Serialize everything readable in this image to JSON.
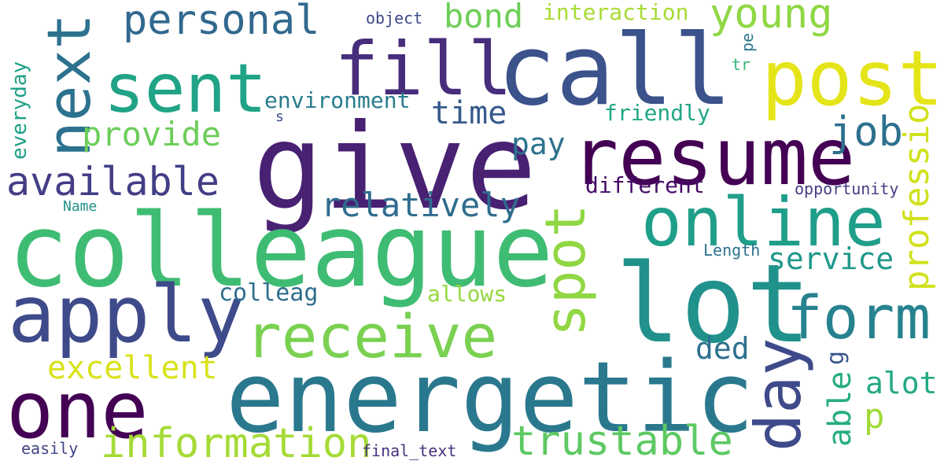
{
  "words": [
    {
      "text": "give",
      "color": "#482173"
    },
    {
      "text": "colleague",
      "color": "#3fbc73"
    },
    {
      "text": "call",
      "color": "#3b528b"
    },
    {
      "text": "energetic",
      "color": "#2a788e"
    },
    {
      "text": "lot",
      "color": "#21918c"
    },
    {
      "text": "resume",
      "color": "#440154"
    },
    {
      "text": "post",
      "color": "#e5e419"
    },
    {
      "text": "online",
      "color": "#1f9e89"
    },
    {
      "text": "apply",
      "color": "#3e4a89"
    },
    {
      "text": "fill",
      "color": "#472d7b"
    },
    {
      "text": "sent",
      "color": "#20a386"
    },
    {
      "text": "one",
      "color": "#440154"
    },
    {
      "text": "next",
      "color": "#2c728e"
    },
    {
      "text": "receive",
      "color": "#7ad151"
    },
    {
      "text": "form",
      "color": "#26828e"
    },
    {
      "text": "day",
      "color": "#3e4a89"
    },
    {
      "text": "spot",
      "color": "#90d743"
    },
    {
      "text": "information",
      "color": "#a5db36"
    },
    {
      "text": "trustable",
      "color": "#5ec962"
    },
    {
      "text": "personal",
      "color": "#31688e"
    },
    {
      "text": "young",
      "color": "#8fd744"
    },
    {
      "text": "available",
      "color": "#433e85"
    },
    {
      "text": "excellent",
      "color": "#d8e219"
    },
    {
      "text": "provide",
      "color": "#6ccd5a"
    },
    {
      "text": "relatively",
      "color": "#2f6c8e"
    },
    {
      "text": "professio",
      "color": "#d0e11c"
    },
    {
      "text": "job",
      "color": "#2d708e"
    },
    {
      "text": "pay",
      "color": "#2c728e"
    },
    {
      "text": "time",
      "color": "#375a8c"
    },
    {
      "text": "service",
      "color": "#1f988b"
    },
    {
      "text": "bond",
      "color": "#6ece58"
    },
    {
      "text": "ded",
      "color": "#2d718e"
    },
    {
      "text": "alot",
      "color": "#23a983"
    },
    {
      "text": "p",
      "color": "#a0da39"
    },
    {
      "text": "able",
      "color": "#27ad81"
    },
    {
      "text": "colleag",
      "color": "#2e6e8e"
    },
    {
      "text": "allows",
      "color": "#95d840"
    },
    {
      "text": "different",
      "color": "#450a69"
    },
    {
      "text": "interaction",
      "color": "#a8db34"
    },
    {
      "text": "environment",
      "color": "#287c8e"
    },
    {
      "text": "friendly",
      "color": "#22a785"
    },
    {
      "text": "everyday",
      "color": "#1fa187"
    },
    {
      "text": "opportunity",
      "color": "#433e85"
    },
    {
      "text": "Length",
      "color": "#2c728e"
    },
    {
      "text": "Name",
      "color": "#21918c"
    },
    {
      "text": "object",
      "color": "#3e4989"
    },
    {
      "text": "easily",
      "color": "#414487"
    },
    {
      "text": "final_text",
      "color": "#46327e"
    },
    {
      "text": "s",
      "color": "#3b528b"
    },
    {
      "text": "pe",
      "color": "#2a788e"
    },
    {
      "text": "tr",
      "color": "#35b779"
    },
    {
      "text": "g",
      "color": "#39558c"
    }
  ]
}
